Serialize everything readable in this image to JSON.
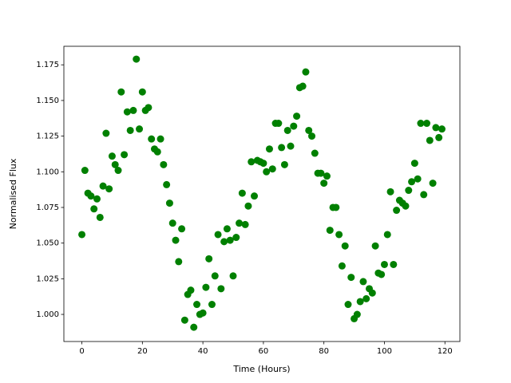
{
  "chart_data": {
    "type": "scatter",
    "x_label": "Time (Hours)",
    "y_label": "Normalised Flux",
    "color": "#008000",
    "x": [
      0,
      1,
      2,
      3,
      4,
      5,
      6,
      7,
      8,
      9,
      10,
      11,
      12,
      13,
      14,
      15,
      16,
      17,
      18,
      19,
      20,
      21,
      22,
      23,
      24,
      25,
      26,
      27,
      28,
      29,
      30,
      31,
      32,
      33,
      34,
      35,
      36,
      37,
      38,
      39,
      40,
      41,
      42,
      43,
      44,
      45,
      46,
      47,
      48,
      49,
      50,
      51,
      52,
      53,
      54,
      55,
      56,
      57,
      58,
      59,
      60,
      61,
      62,
      63,
      64,
      65,
      66,
      67,
      68,
      69,
      70,
      71,
      72,
      73,
      74,
      75,
      76,
      77,
      78,
      79,
      80,
      81,
      82,
      83,
      84,
      85,
      86,
      87,
      88,
      89,
      90,
      91,
      92,
      93,
      94,
      95,
      96,
      97,
      98,
      99,
      100,
      101,
      102,
      103,
      104,
      105,
      106,
      107,
      108,
      109,
      110,
      111,
      112,
      113,
      114,
      115,
      116,
      117,
      118,
      119
    ],
    "values": [
      1.056,
      1.101,
      1.085,
      1.083,
      1.074,
      1.081,
      1.068,
      1.09,
      1.127,
      1.088,
      1.111,
      1.105,
      1.101,
      1.156,
      1.112,
      1.142,
      1.129,
      1.143,
      1.179,
      1.13,
      1.156,
      1.143,
      1.145,
      1.123,
      1.116,
      1.114,
      1.123,
      1.105,
      1.091,
      1.078,
      1.064,
      1.052,
      1.037,
      1.06,
      0.996,
      1.014,
      1.017,
      0.991,
      1.007,
      1.0,
      1.001,
      1.019,
      1.039,
      1.007,
      1.027,
      1.056,
      1.018,
      1.051,
      1.06,
      1.052,
      1.027,
      1.054,
      1.064,
      1.085,
      1.063,
      1.076,
      1.107,
      1.083,
      1.108,
      1.107,
      1.106,
      1.1,
      1.116,
      1.102,
      1.134,
      1.134,
      1.117,
      1.105,
      1.129,
      1.118,
      1.132,
      1.139,
      1.159,
      1.16,
      1.17,
      1.129,
      1.125,
      1.113,
      1.099,
      1.099,
      1.092,
      1.097,
      1.059,
      1.075,
      1.075,
      1.056,
      1.034,
      1.048,
      1.007,
      1.026,
      0.997,
      1.0,
      1.009,
      1.023,
      1.011,
      1.018,
      1.015,
      1.048,
      1.029,
      1.028,
      1.035,
      1.056,
      1.086,
      1.035,
      1.073,
      1.08,
      1.078,
      1.076,
      1.087,
      1.093,
      1.106,
      1.095,
      1.134,
      1.084,
      1.134,
      1.122,
      1.092,
      1.131,
      1.124,
      1.13
    ],
    "xlim": [
      -5.95,
      124.95
    ],
    "xticks": [
      0,
      20,
      40,
      60,
      80,
      100,
      120
    ],
    "ylim": [
      0.981,
      1.188
    ],
    "yticks": [
      {
        "value": 1,
        "label": "1.000"
      },
      {
        "value": 1.025,
        "label": "1.025"
      },
      {
        "value": 1.05,
        "label": "1.050"
      },
      {
        "value": 1.075,
        "label": "1.075"
      },
      {
        "value": 1.1,
        "label": "1.100"
      },
      {
        "value": 1.125,
        "label": "1.125"
      },
      {
        "value": 1.15,
        "label": "1.150"
      },
      {
        "value": 1.175,
        "label": "1.175"
      }
    ]
  }
}
